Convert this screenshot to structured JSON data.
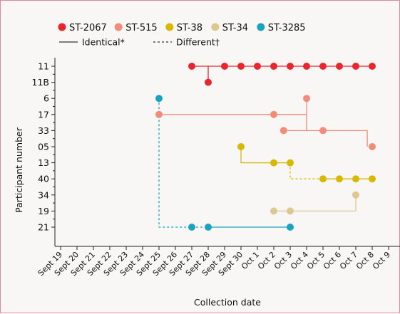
{
  "chart_data": {
    "type": "scatter",
    "xlabel": "Collection date",
    "ylabel": "Participant number",
    "x_ticks": [
      "Sept 19",
      "Sept 20",
      "Sept 21",
      "Sept 22",
      "Sept 23",
      "Sept 24",
      "Sept 25",
      "Sept 26",
      "Sept 27",
      "Sept 28",
      "Sept 29",
      "Sept 30",
      "Oct 1",
      "Oct 2",
      "Oct 3",
      "Oct 4",
      "Oct 5",
      "Oct 6",
      "Oct 7",
      "Oct 8",
      "Oct 9"
    ],
    "y_ticks": [
      "11",
      "11B",
      "6",
      "17",
      "33",
      "05",
      "13",
      "40",
      "34",
      "19",
      "21"
    ],
    "grid": false,
    "legend_position": "top-left",
    "legend_strains": [
      {
        "name": "ST-2067",
        "color": "#e8262d"
      },
      {
        "name": "ST-515",
        "color": "#f28c79"
      },
      {
        "name": "ST-38",
        "color": "#d9b800"
      },
      {
        "name": "ST-34",
        "color": "#ddc98f"
      },
      {
        "name": "ST-3285",
        "color": "#1aa3bf"
      }
    ],
    "legend_lines": [
      {
        "label": "Identical*",
        "style": "solid"
      },
      {
        "label": "Different†",
        "style": "dashed"
      }
    ],
    "series": [
      {
        "name": "ST-2067",
        "color": "#e8262d",
        "points": [
          {
            "participant": "11",
            "date": "Sept 27"
          },
          {
            "participant": "11",
            "date": "Sept 29"
          },
          {
            "participant": "11",
            "date": "Sept 30"
          },
          {
            "participant": "11",
            "date": "Oct 1"
          },
          {
            "participant": "11",
            "date": "Oct 2"
          },
          {
            "participant": "11",
            "date": "Oct 3"
          },
          {
            "participant": "11",
            "date": "Oct 4"
          },
          {
            "participant": "11",
            "date": "Oct 5"
          },
          {
            "participant": "11",
            "date": "Oct 6"
          },
          {
            "participant": "11",
            "date": "Oct 7"
          },
          {
            "participant": "11",
            "date": "Oct 8"
          },
          {
            "participant": "11B",
            "date": "Sept 28"
          }
        ]
      },
      {
        "name": "ST-515",
        "color": "#f28c79",
        "points": [
          {
            "participant": "6",
            "date": "Oct 4"
          },
          {
            "participant": "17",
            "date": "Sept 25"
          },
          {
            "participant": "17",
            "date": "Oct 2"
          },
          {
            "participant": "33",
            "date": "Oct 2.6"
          },
          {
            "participant": "33",
            "date": "Oct 5"
          },
          {
            "participant": "05",
            "date": "Oct 8"
          }
        ]
      },
      {
        "name": "ST-38",
        "color": "#d9b800",
        "points": [
          {
            "participant": "05",
            "date": "Sept 30"
          },
          {
            "participant": "13",
            "date": "Oct 2"
          },
          {
            "participant": "13",
            "date": "Oct 3"
          },
          {
            "participant": "40",
            "date": "Oct 5"
          },
          {
            "participant": "40",
            "date": "Oct 6"
          },
          {
            "participant": "40",
            "date": "Oct 7"
          },
          {
            "participant": "40",
            "date": "Oct 8"
          }
        ]
      },
      {
        "name": "ST-34",
        "color": "#ddc98f",
        "points": [
          {
            "participant": "34",
            "date": "Oct 7"
          },
          {
            "participant": "19",
            "date": "Oct 2"
          },
          {
            "participant": "19",
            "date": "Oct 3"
          }
        ]
      },
      {
        "name": "ST-3285",
        "color": "#1aa3bf",
        "points": [
          {
            "participant": "6",
            "date": "Sept 25"
          },
          {
            "participant": "21",
            "date": "Sept 27"
          },
          {
            "participant": "21",
            "date": "Sept 28"
          },
          {
            "participant": "21",
            "date": "Oct 3"
          }
        ]
      }
    ],
    "links": [
      {
        "color": "#e8262d",
        "style": "solid",
        "points": [
          [
            "Sept 27",
            "11"
          ],
          [
            "Oct 8",
            "11"
          ]
        ]
      },
      {
        "color": "#e8262d",
        "style": "solid",
        "points": [
          [
            "Sept 28",
            "11"
          ],
          [
            "Sept 28",
            "11B"
          ]
        ]
      },
      {
        "color": "#f28c79",
        "style": "solid",
        "points": [
          [
            "Sept 25",
            "17"
          ],
          [
            "Oct 4",
            "17"
          ]
        ]
      },
      {
        "color": "#f28c79",
        "style": "solid",
        "points": [
          [
            "Oct 4",
            "6"
          ],
          [
            "Oct 4",
            "33"
          ]
        ]
      },
      {
        "color": "#f28c79",
        "style": "solid",
        "points": [
          [
            "Oct 2.6",
            "33"
          ],
          [
            "Oct 7.7",
            "33"
          ],
          [
            "Oct 7.7",
            "05"
          ]
        ]
      },
      {
        "color": "#d9b800",
        "style": "solid",
        "points": [
          [
            "Sept 30",
            "05"
          ],
          [
            "Sept 30",
            "13"
          ],
          [
            "Oct 3",
            "13"
          ]
        ]
      },
      {
        "color": "#d9b800",
        "style": "dashed",
        "points": [
          [
            "Oct 3",
            "13"
          ],
          [
            "Oct 3",
            "40"
          ],
          [
            "Oct 5",
            "40"
          ]
        ]
      },
      {
        "color": "#d9b800",
        "style": "solid",
        "points": [
          [
            "Oct 5",
            "40"
          ],
          [
            "Oct 8",
            "40"
          ]
        ]
      },
      {
        "color": "#ddc98f",
        "style": "solid",
        "points": [
          [
            "Oct 2",
            "19"
          ],
          [
            "Oct 7",
            "19"
          ],
          [
            "Oct 7",
            "34"
          ]
        ]
      },
      {
        "color": "#1aa3bf",
        "style": "dashed",
        "points": [
          [
            "Sept 25",
            "6"
          ],
          [
            "Sept 25",
            "21"
          ],
          [
            "Sept 27",
            "21"
          ]
        ]
      },
      {
        "color": "#1aa3bf",
        "style": "dashed",
        "points": [
          [
            "Sept 27",
            "21"
          ],
          [
            "Sept 28",
            "21"
          ]
        ]
      },
      {
        "color": "#1aa3bf",
        "style": "solid",
        "points": [
          [
            "Sept 28",
            "21"
          ],
          [
            "Oct 3",
            "21"
          ]
        ]
      }
    ]
  }
}
